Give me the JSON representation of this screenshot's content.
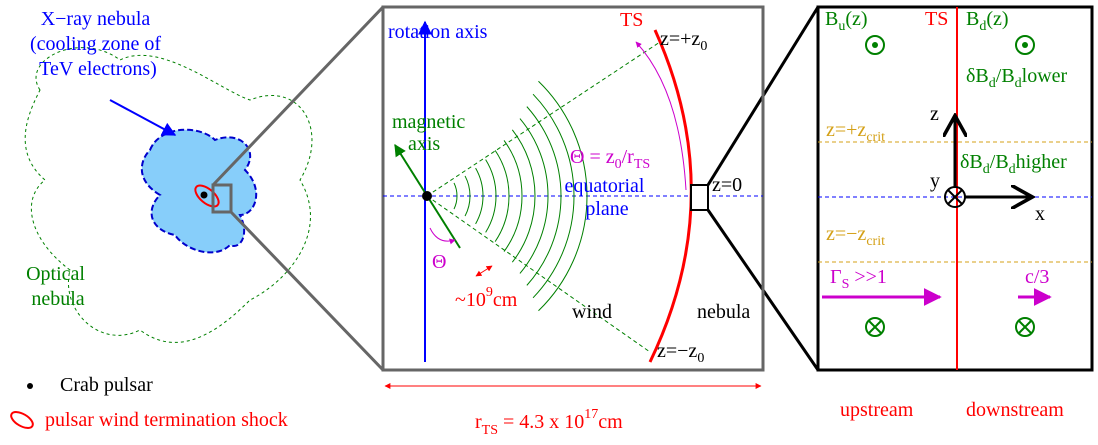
{
  "left_panel": {
    "xray_nebula": [
      "X−ray nebula",
      "(cooling zone of",
      "TeV electrons)"
    ],
    "optical_nebula": [
      "Optical",
      "nebula"
    ]
  },
  "legend": {
    "crab_pulsar": "Crab pulsar",
    "termination_shock": "pulsar wind termination shock"
  },
  "middle_panel": {
    "rotation_axis": "rotation axis",
    "ts": "TS",
    "z_top": {
      "text": "z=+z",
      "sub": "0"
    },
    "magnetic_axis": [
      "magnetic",
      "axis"
    ],
    "theta_def": {
      "text": "Θ = z",
      "sub": "0",
      "slash": "/r",
      "sub2": "TS"
    },
    "equatorial_plane": [
      "equatorial",
      "plane"
    ],
    "z_zero": "z=0",
    "theta": "Θ",
    "wavelength": {
      "text": "~10",
      "sup": "9",
      "unit": "cm"
    },
    "wind": "wind",
    "nebula": "nebula",
    "z_bottom": {
      "text": "z=−z",
      "sub": "0"
    },
    "radius": {
      "text": "r",
      "sub": "TS",
      "eq": " = 4.3 x 10",
      "sup": "17",
      "unit": "cm"
    }
  },
  "right_panel": {
    "b_up": {
      "text": "B",
      "sub": "u",
      "arg": "(z)"
    },
    "ts": "TS",
    "b_down": {
      "text": "B",
      "sub": "d",
      "arg": "(z)"
    },
    "lower": {
      "text": "δB",
      "sub": "d",
      "slash": "/B",
      "sub2": "d",
      "word": "lower"
    },
    "higher": {
      "text": "δB",
      "sub": "d",
      "slash": "/B",
      "sub2": "d",
      "word": "higher"
    },
    "z_axis": "z",
    "y_axis": "y",
    "x_axis": "x",
    "z_crit_top": {
      "text": "z=+z",
      "sub": "crit"
    },
    "z_crit_bottom": {
      "text": "z=−z",
      "sub": "crit"
    },
    "gamma": {
      "text": "Γ",
      "sub": "S",
      "rest": " >>1"
    },
    "c3": "c/3",
    "upstream": "upstream",
    "downstream": "downstream"
  }
}
